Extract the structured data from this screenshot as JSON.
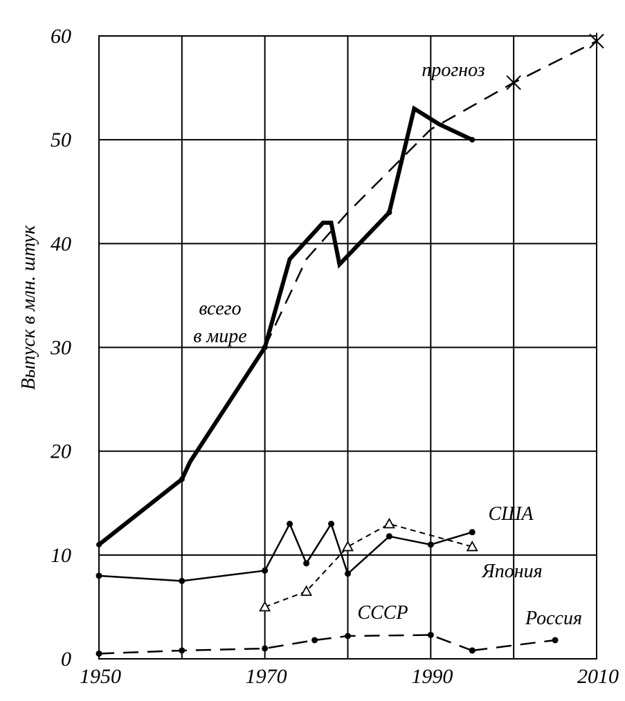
{
  "chart_data": {
    "type": "line",
    "title": "",
    "xlabel": "",
    "ylabel": "Выпуск в млн. штук",
    "xlim": [
      1950,
      2010
    ],
    "ylim": [
      0,
      60
    ],
    "x_ticks": [
      "1950",
      "1970",
      "1990",
      "2010"
    ],
    "y_ticks": [
      "0",
      "10",
      "20",
      "30",
      "40",
      "50",
      "60"
    ],
    "grid": true,
    "series": [
      {
        "name": "всего в мире",
        "style": "thick",
        "points": [
          [
            1950,
            11
          ],
          [
            1960,
            17.3
          ],
          [
            1961,
            19
          ],
          [
            1970,
            30
          ],
          [
            1973,
            38.5
          ],
          [
            1977,
            42
          ],
          [
            1978,
            42
          ],
          [
            1979,
            38
          ],
          [
            1985,
            43
          ],
          [
            1988,
            53
          ],
          [
            1991,
            51.5
          ],
          [
            1995,
            50
          ]
        ]
      },
      {
        "name": "прогноз",
        "style": "dashed",
        "points": [
          [
            1970,
            30
          ],
          [
            1975,
            38.5
          ],
          [
            1980,
            43
          ],
          [
            1985,
            47
          ],
          [
            1990,
            51
          ],
          [
            2000,
            55.5
          ],
          [
            2010,
            59.5
          ]
        ]
      },
      {
        "name": "США",
        "style": "thin-dots",
        "points": [
          [
            1950,
            8
          ],
          [
            1960,
            7.5
          ],
          [
            1970,
            8.5
          ],
          [
            1973,
            13
          ],
          [
            1975,
            9.2
          ],
          [
            1978,
            13
          ],
          [
            1980,
            8.2
          ],
          [
            1985,
            11.8
          ],
          [
            1990,
            11
          ],
          [
            1995,
            12.2
          ]
        ]
      },
      {
        "name": "Япония",
        "style": "dashed-triangles",
        "points": [
          [
            1970,
            5
          ],
          [
            1975,
            6.5
          ],
          [
            1980,
            10.8
          ],
          [
            1985,
            13
          ],
          [
            1995,
            10.8
          ]
        ]
      },
      {
        "name": "СССР",
        "style": "dashed-dots",
        "points": [
          [
            1950,
            0.5
          ],
          [
            1960,
            0.8
          ],
          [
            1970,
            1
          ],
          [
            1976,
            1.8
          ],
          [
            1980,
            2.2
          ],
          [
            1990,
            2.3
          ],
          [
            1995,
            0.8
          ]
        ]
      },
      {
        "name": "Россия",
        "style": "dashed-dots",
        "points": [
          [
            1995,
            0.8
          ],
          [
            2005,
            1.8
          ]
        ]
      }
    ],
    "annotations": {
      "world_line1": "всего",
      "world_line2": "в мире",
      "forecast": "прогноз",
      "usa": "США",
      "japan": "Япония",
      "ussr": "СССР",
      "russia": "Россия"
    },
    "colors": {
      "line": "#000000",
      "background": "#ffffff"
    }
  }
}
